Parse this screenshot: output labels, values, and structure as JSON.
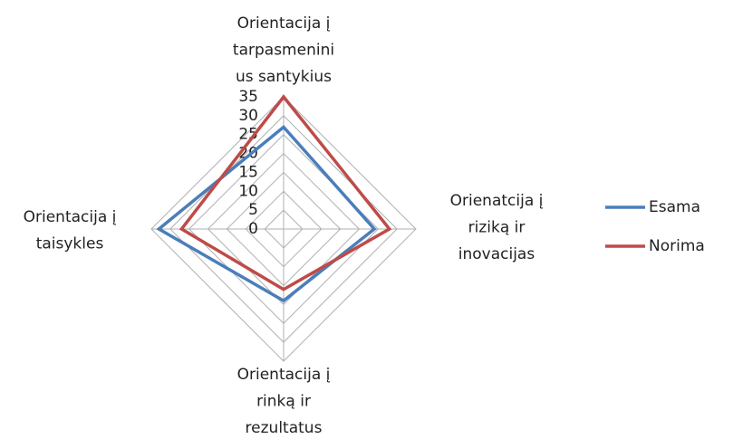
{
  "chart_data": {
    "type": "radar",
    "categories": [
      "Orientacija į\ntarpasmenini\nus santykius",
      "Orienatcija į\nriziką ir\ninovacijas",
      "Orientacija į\nrinką ir\nrezultatus",
      "Orientacija į\ntaisykles"
    ],
    "series": [
      {
        "name": "Esama",
        "color": "#4a7ebb",
        "values": [
          27,
          24,
          19,
          33
        ]
      },
      {
        "name": "Norima",
        "color": "#be4b48",
        "values": [
          35,
          28,
          16,
          27
        ]
      }
    ],
    "ylim": [
      0,
      35
    ],
    "yticks": [
      0,
      5,
      10,
      15,
      20,
      25,
      30,
      35
    ],
    "grid": true,
    "legend": "right"
  }
}
